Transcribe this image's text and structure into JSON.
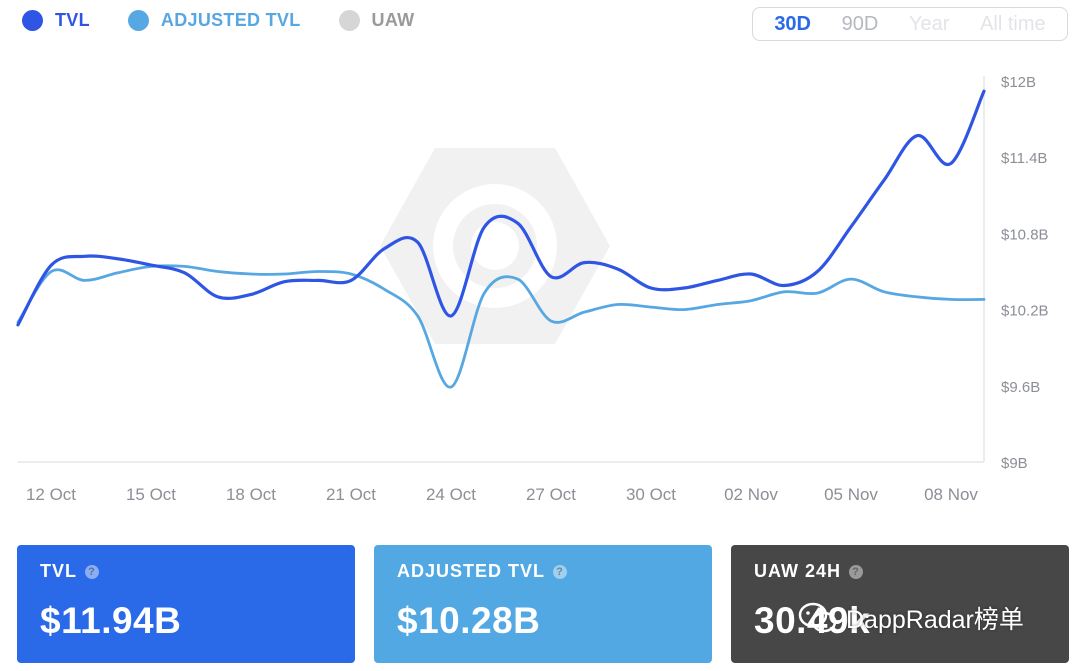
{
  "legend": [
    {
      "label": "TVL",
      "color": "#2f55e4"
    },
    {
      "label": "ADJUSTED TVL",
      "color": "#57a7e2"
    },
    {
      "label": "UAW",
      "color": "#d6d6d6"
    }
  ],
  "range_buttons": [
    {
      "label": "30D",
      "color": "#2a6ae9"
    },
    {
      "label": "90D",
      "color": "#b5b9bf"
    },
    {
      "label": "Year",
      "color": "#e2e4e7"
    },
    {
      "label": "All time",
      "color": "#e2e4e7"
    }
  ],
  "cards": [
    {
      "label": "TVL",
      "value": "$11.94B",
      "color": "#2a6ae9"
    },
    {
      "label": "ADJUSTED TVL",
      "value": "$10.28B",
      "color": "#52a8e3"
    },
    {
      "label": "UAW 24H",
      "value": "30.49k",
      "color": "#474747"
    }
  ],
  "watermark": "DappRadar榜单",
  "chart_data": {
    "type": "line",
    "x_ticks": [
      "12 Oct",
      "15 Oct",
      "18 Oct",
      "21 Oct",
      "24 Oct",
      "27 Oct",
      "30 Oct",
      "02 Nov",
      "05 Nov",
      "08 Nov"
    ],
    "y_ticks": [
      "$9B",
      "$9.6B",
      "$10.2B",
      "$10.8B",
      "$11.4B",
      "$12B"
    ],
    "ylim": [
      9,
      12
    ],
    "x": [
      11,
      12,
      13,
      14,
      15,
      16,
      17,
      18,
      19,
      20,
      21,
      22,
      23,
      24,
      25,
      26,
      27,
      28,
      29,
      30,
      31,
      32,
      33,
      34,
      35,
      36,
      37,
      38,
      39,
      40
    ],
    "series": [
      {
        "name": "TVL",
        "color": "#2f55e4",
        "values": [
          10.08,
          10.55,
          10.62,
          10.6,
          10.55,
          10.49,
          10.3,
          10.32,
          10.42,
          10.43,
          10.43,
          10.68,
          10.73,
          10.15,
          10.85,
          10.88,
          10.46,
          10.57,
          10.52,
          10.37,
          10.37,
          10.43,
          10.48,
          10.39,
          10.5,
          10.85,
          11.22,
          11.57,
          11.35,
          11.92
        ]
      },
      {
        "name": "ADJUSTED TVL",
        "color": "#57a7e2",
        "values": [
          10.1,
          10.5,
          10.43,
          10.49,
          10.54,
          10.54,
          10.5,
          10.48,
          10.48,
          10.5,
          10.48,
          10.36,
          10.15,
          9.59,
          10.33,
          10.44,
          10.11,
          10.18,
          10.24,
          10.22,
          10.2,
          10.24,
          10.27,
          10.34,
          10.33,
          10.44,
          10.34,
          10.3,
          10.28,
          10.28
        ]
      }
    ]
  }
}
